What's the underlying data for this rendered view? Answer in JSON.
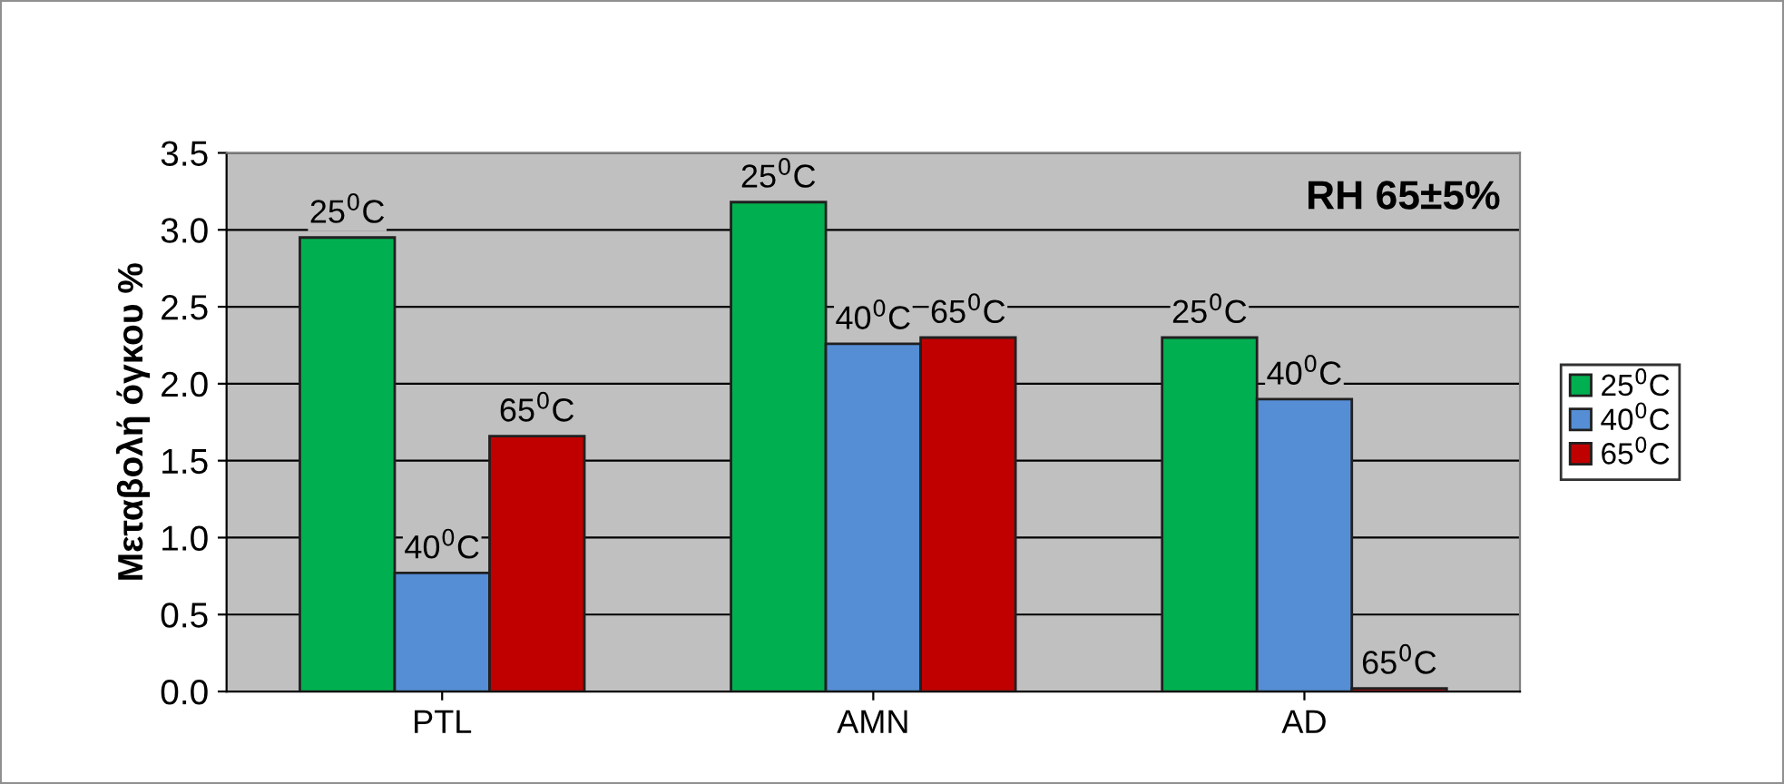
{
  "chart_data": {
    "type": "bar",
    "ylabel": "Μεταβολή όγκου %",
    "categories": [
      "PTL",
      "AMN",
      "AD"
    ],
    "series": [
      {
        "name": "25$^{0}$C",
        "color": "#00b050",
        "values": [
          2.95,
          3.18,
          2.3
        ]
      },
      {
        "name": "40$^{0}$C",
        "color": "#558ed5",
        "values": [
          0.77,
          2.26,
          1.9
        ]
      },
      {
        "name": "65$^{0}$C",
        "color": "#c00000",
        "values": [
          1.66,
          2.3,
          0.02
        ]
      }
    ],
    "ylim": [
      0,
      3.5
    ],
    "yticks": [
      {
        "value": 0,
        "label": "0.0"
      },
      {
        "value": 0.5,
        "label": "0.5"
      },
      {
        "value": 1,
        "label": "1.0"
      },
      {
        "value": 1.5,
        "label": "1.5"
      },
      {
        "value": 2,
        "label": "2.0"
      },
      {
        "value": 2.5,
        "label": "2.5"
      },
      {
        "value": 3,
        "label": "3.0"
      },
      {
        "value": 3.5,
        "label": "3.5"
      }
    ],
    "grid": "y",
    "legend": "right",
    "annotations": [
      "RH 65±5%",
      "25$^{0}$C",
      "40$^{0}$C",
      "65$^{0}$C",
      "25$^{0}$C",
      "40$^{0}$C",
      "65$^{0}$C",
      "25$^{0}$C",
      "40$^{0}$C",
      "65$^{0}$C"
    ]
  }
}
